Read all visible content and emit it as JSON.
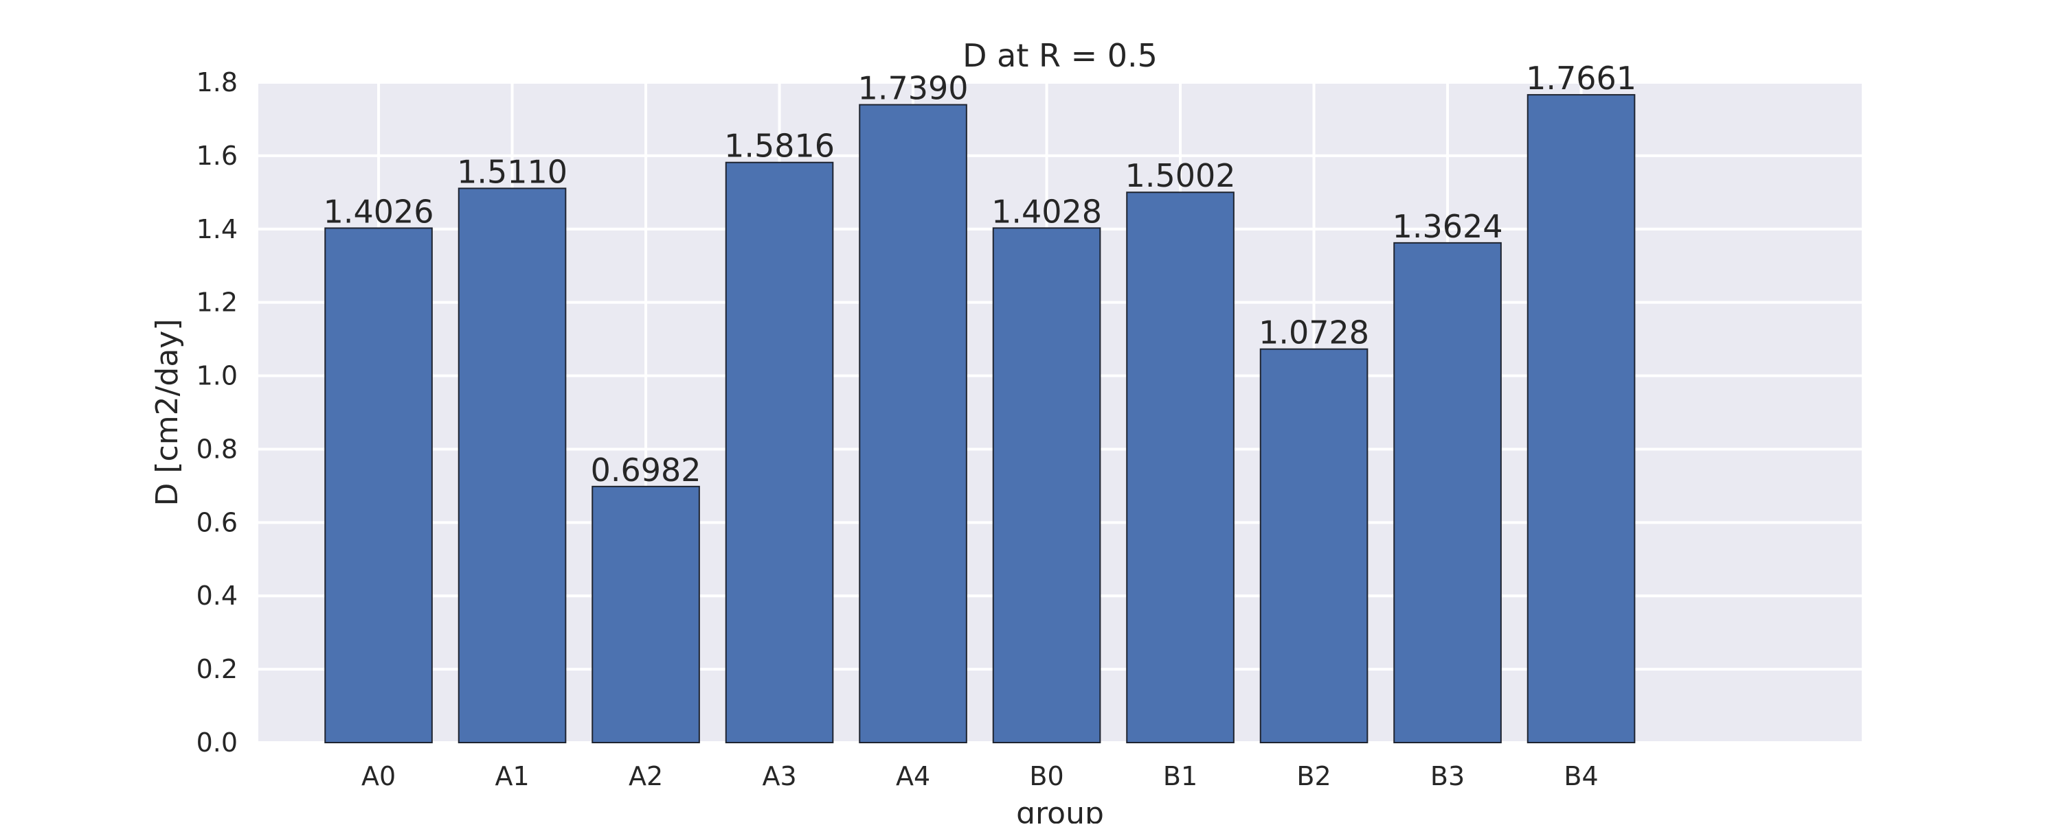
{
  "chart_data": {
    "type": "bar",
    "title": "D at R = 0.5",
    "xlabel": "group",
    "ylabel": "D [cm2/day]",
    "categories": [
      "A0",
      "A1",
      "A2",
      "A3",
      "A4",
      "B0",
      "B1",
      "B2",
      "B3",
      "B4"
    ],
    "values": [
      1.4026,
      1.511,
      0.6982,
      1.5816,
      1.739,
      1.4028,
      1.5002,
      1.0728,
      1.3624,
      1.7661
    ],
    "value_labels": [
      "1.4026",
      "1.5110",
      "0.6982",
      "1.5816",
      "1.7390",
      "1.4028",
      "1.5002",
      "1.0728",
      "1.3624",
      "1.7661"
    ],
    "ylim": [
      0,
      1.8
    ],
    "yticks": [
      "0.0",
      "0.2",
      "0.4",
      "0.6",
      "0.8",
      "1.0",
      "1.2",
      "1.4",
      "1.6",
      "1.8"
    ],
    "xlim": [
      -0.9,
      11.1
    ],
    "grid": true,
    "colors": {
      "bar": "#4C72B0",
      "background": "#EAEAF2",
      "grid": "#FFFFFF"
    }
  }
}
